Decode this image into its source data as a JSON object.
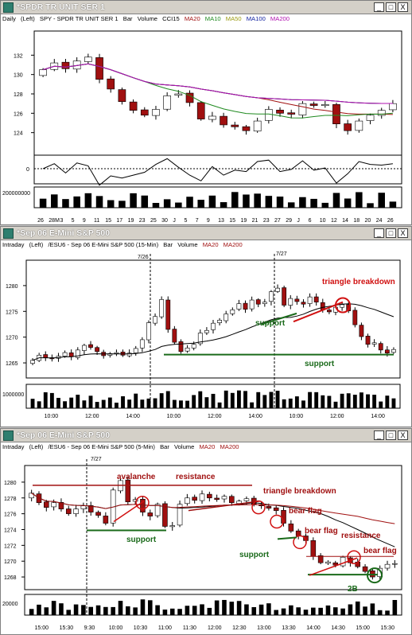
{
  "colors": {
    "ma20": "#a01010",
    "ma10": "#1f8a1f",
    "ma50": "#9a9a10",
    "ma100": "#1020a0",
    "ma200": "#b010b0",
    "annot_red": "#d01010",
    "annot_green": "#1a6a1a",
    "titlebar_bg": "#d4d0c8"
  },
  "windows": [
    {
      "title": "*SPDR TR UNIT SER 1",
      "buttons": [
        "_",
        "□",
        "X"
      ],
      "header": {
        "period": "Daily",
        "scale": "(Left)",
        "symbol": "SPY - SPDR TR UNIT SER 1",
        "study1": "Bar",
        "study2": "Volume",
        "study3": "CCI15",
        "ma_a": "MA20",
        "ma_b": "MA10",
        "ma_c": "MA50",
        "ma_d": "MA100",
        "ma_e": "MA200"
      },
      "volume_label": "200000000",
      "xticks": [
        "26",
        "28M",
        "3",
        "5",
        "9",
        "11",
        "15",
        "17",
        "19",
        "23",
        "25",
        "30",
        "J",
        "5",
        "7",
        "9",
        "13",
        "15",
        "19",
        "21",
        "23",
        "27",
        "29",
        "J",
        "6",
        "10",
        "12",
        "14",
        "18",
        "20",
        "24",
        "26"
      ]
    },
    {
      "title": "*Sep 06  E-Mini S&P 500",
      "buttons": [
        "_",
        "□",
        "X"
      ],
      "header": {
        "period": "Intraday",
        "scale": "(Left)",
        "symbol": "/ESU6 - Sep 06 E-Mini S&P 500 (15-Min)",
        "study1": "Bar",
        "study2": "Volume",
        "ma_a": "MA20",
        "ma_e": "MA200"
      },
      "date_markers": [
        "7/26",
        "7/27"
      ],
      "volume_label": "1000000",
      "xticks": [
        "10:00",
        "12:00",
        "14:00",
        "10:00",
        "12:00",
        "14:00",
        "10:00",
        "12:00",
        "14:00"
      ],
      "annotations": {
        "triangle": "triangle breakdown",
        "support1": "support",
        "support2": "support"
      }
    },
    {
      "title": "*Sep 06  E-Mini S&P 500",
      "buttons": [
        "_",
        "□",
        "X"
      ],
      "header": {
        "period": "Intraday",
        "scale": "(Left)",
        "symbol": "/ESU6 - Sep 06 E-Mini S&P 500 (5-Min)",
        "study1": "Bar",
        "study2": "Volume",
        "ma_a": "MA20",
        "ma_e": "MA200"
      },
      "date_markers": [
        "7/27"
      ],
      "volume_label": "20000",
      "xticks": [
        "15:00",
        "15:30",
        "9:30",
        "10:00",
        "10:30",
        "11:00",
        "11:30",
        "12:00",
        "12:30",
        "13:00",
        "13:30",
        "14:00",
        "14:30",
        "15:00",
        "15:30"
      ],
      "annotations": {
        "avalanche": "avalanche",
        "resistance1": "resistance",
        "triangle": "triangle breakdown",
        "bearflag1": "bear flag",
        "bearflag2": "bear flag",
        "resistance2": "resistance",
        "bearflag3": "bear flag",
        "support1": "support",
        "support2": "support",
        "twob": "2B"
      }
    }
  ],
  "chart_data": [
    {
      "type": "candlestick",
      "title": "SPDR TR UNIT SER 1 Daily",
      "yticks": [
        124,
        126,
        128,
        130,
        132
      ],
      "ylim": [
        122,
        134
      ],
      "categories": [
        "26",
        "28M",
        "3",
        "5",
        "9",
        "11",
        "15",
        "17",
        "19",
        "23",
        "25",
        "30",
        "J",
        "5",
        "7",
        "9",
        "13",
        "15",
        "19",
        "21",
        "23",
        "27",
        "29",
        "J",
        "6",
        "10",
        "12",
        "14",
        "18",
        "20",
        "24",
        "26"
      ],
      "close": [
        130.5,
        131.2,
        130.6,
        131.4,
        131.8,
        129.5,
        128.5,
        127.2,
        126.3,
        125.8,
        126.4,
        127.8,
        128.0,
        127.1,
        125.4,
        125.7,
        124.8,
        124.6,
        124.2,
        125.2,
        126.4,
        126.0,
        125.9,
        127.0,
        126.8,
        126.9,
        124.9,
        124.2,
        125.2,
        125.8,
        126.3,
        127.0
      ],
      "cci_zero": 0,
      "series": [
        {
          "name": "MA20"
        },
        {
          "name": "MA10"
        },
        {
          "name": "MA50"
        },
        {
          "name": "MA100"
        },
        {
          "name": "MA200"
        }
      ]
    },
    {
      "type": "candlestick",
      "title": "/ESU6 15-Min",
      "yticks": [
        1265,
        1270,
        1275,
        1280
      ],
      "ylim": [
        1263,
        1284
      ],
      "close": [
        1265.5,
        1266.5,
        1266.0,
        1265.8,
        1266.3,
        1267.0,
        1266.2,
        1267.5,
        1268.4,
        1268.0,
        1267.2,
        1266.4,
        1266.8,
        1267.0,
        1266.5,
        1266.9,
        1267.8,
        1269.5,
        1272.8,
        1274.0,
        1277.3,
        1271.5,
        1269.0,
        1267.2,
        1267.9,
        1268.6,
        1270.8,
        1271.3,
        1272.7,
        1273.3,
        1274.5,
        1275.3,
        1276.5,
        1275.4,
        1277.2,
        1276.4,
        1276.8,
        1278.8,
        1279.5,
        1276.2,
        1277.5,
        1276.9,
        1276.4,
        1277.8,
        1276.8,
        1275.3,
        1274.9,
        1275.8,
        1276.3,
        1275.1,
        1272.4,
        1270.1,
        1268.6,
        1268.9,
        1267.5,
        1266.9,
        1267.6
      ]
    },
    {
      "type": "candlestick",
      "title": "/ESU6 5-Min",
      "yticks": [
        1268,
        1270,
        1272,
        1274,
        1276,
        1278,
        1280
      ],
      "ylim": [
        1267,
        1281.5
      ],
      "close": [
        1278.6,
        1277.4,
        1276.8,
        1277.4,
        1276.6,
        1276.0,
        1276.6,
        1277.0,
        1276.2,
        1275.8,
        1274.8,
        1279.0,
        1280.2,
        1277.5,
        1277.8,
        1276.2,
        1275.7,
        1277.2,
        1274.4,
        1274.5,
        1277.2,
        1278.0,
        1277.7,
        1278.5,
        1278.0,
        1277.8,
        1278.2,
        1277.4,
        1277.6,
        1277.9,
        1277.2,
        1277.0,
        1276.7,
        1276.4,
        1274.8,
        1273.8,
        1273.2,
        1272.6,
        1270.6,
        1269.8,
        1269.9,
        1269.5,
        1270.5,
        1269.8,
        1269.3,
        1268.7,
        1268.0,
        1269.1,
        1269.6,
        1269.7
      ]
    }
  ]
}
